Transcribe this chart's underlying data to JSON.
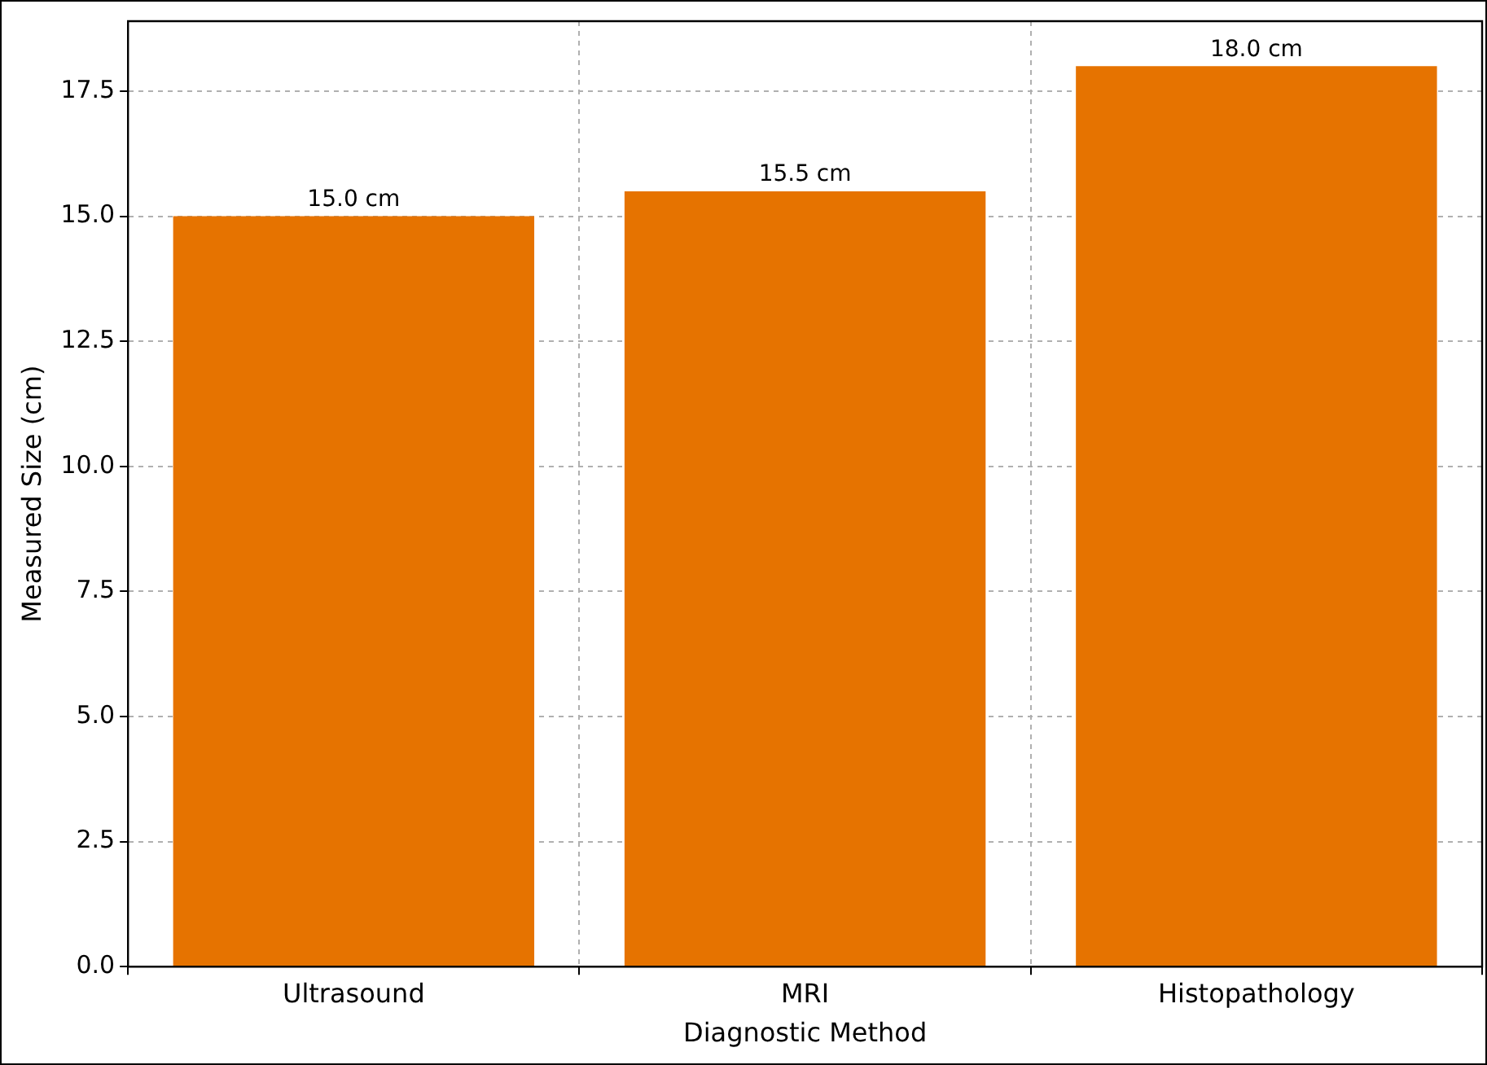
{
  "chart_data": {
    "type": "bar",
    "xlabel": "Diagnostic Method",
    "ylabel": "Measured Size (cm)",
    "categories": [
      "Ultrasound",
      "MRI",
      "Histopathology"
    ],
    "values": [
      15.0,
      15.5,
      18.0
    ],
    "color": "#e67300",
    "value_labels": [
      "15.0 cm",
      "15.5 cm",
      "18.0 cm"
    ],
    "ylim": [
      0,
      18.9
    ],
    "yticks": [
      {
        "value": 0,
        "label": "0.0"
      },
      {
        "value": 2.5,
        "label": "2.5"
      },
      {
        "value": 5,
        "label": "5.0"
      },
      {
        "value": 7.5,
        "label": "7.5"
      },
      {
        "value": 10,
        "label": "10.0"
      },
      {
        "value": 12.5,
        "label": "12.5"
      },
      {
        "value": 15,
        "label": "15.0"
      },
      {
        "value": 17.5,
        "label": "17.5"
      }
    ],
    "grid": true
  }
}
